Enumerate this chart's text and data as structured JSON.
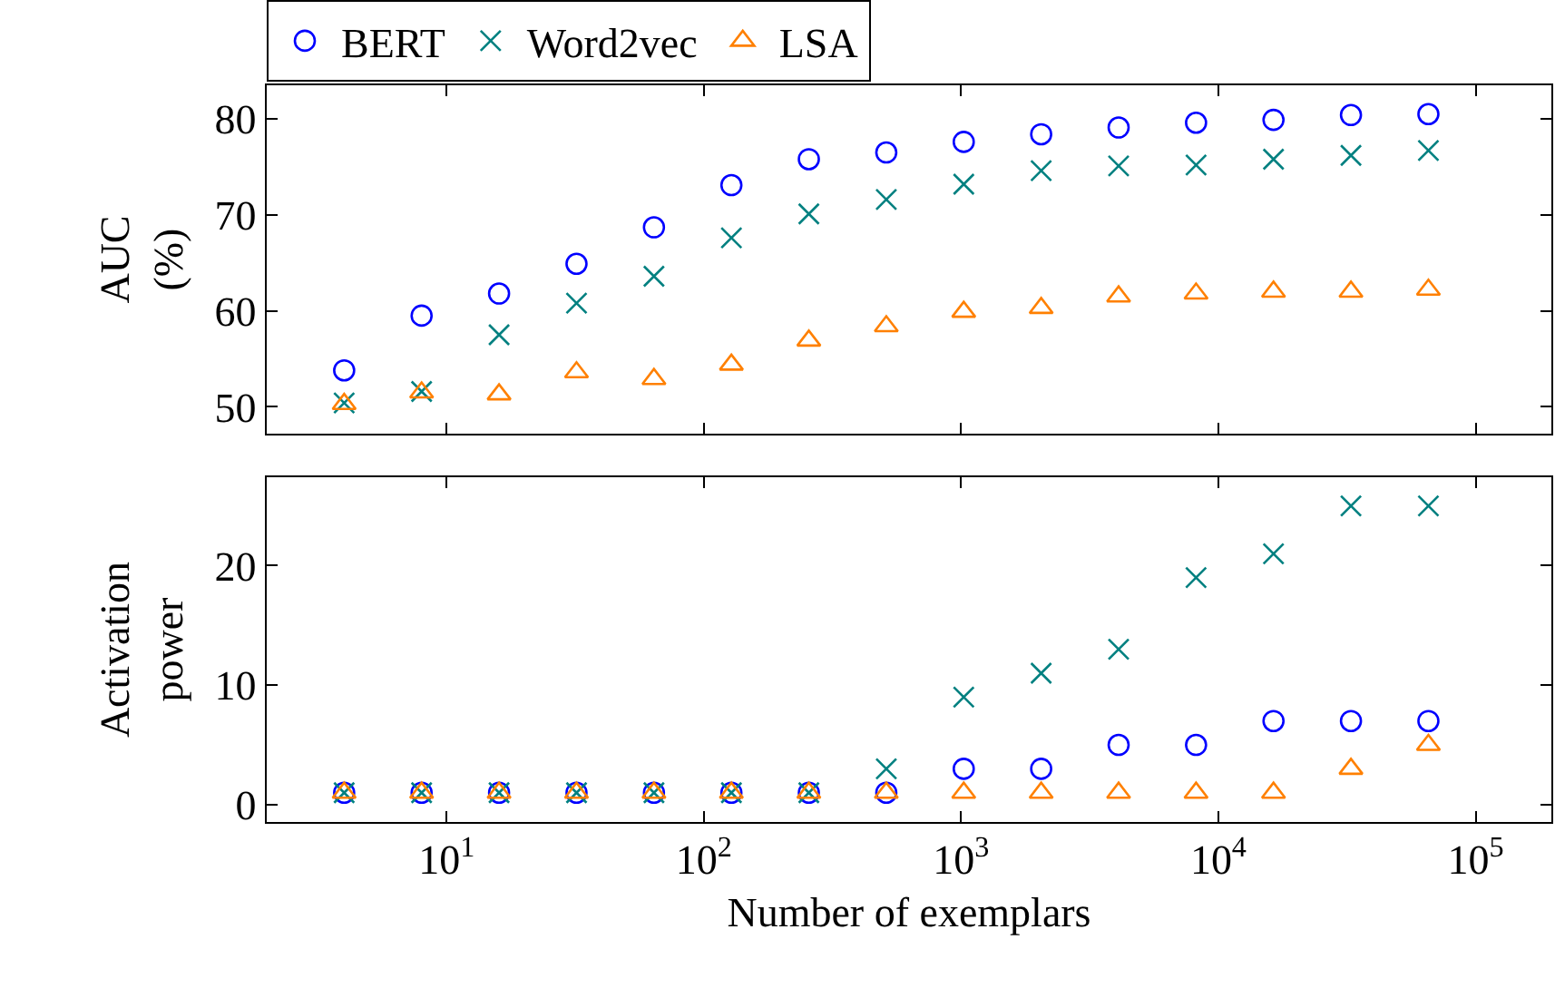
{
  "chart_data": [
    {
      "type": "scatter",
      "ylabel": "AUC\n(%)",
      "log": "x",
      "legend": "top left",
      "tick_labels": "y",
      "x": [
        4,
        8,
        16,
        32,
        64,
        128,
        256,
        512,
        1024,
        2048,
        4096,
        8192,
        16384,
        32768,
        65536
      ],
      "xlim": [
        2,
        197000
      ],
      "xticks": [
        {
          "value": 10,
          "label": null
        },
        {
          "value": 100,
          "label": null
        },
        {
          "value": 1000,
          "label": null
        },
        {
          "value": 10000,
          "label": null
        },
        {
          "value": 100000,
          "label": null
        }
      ],
      "ylim": [
        47.2,
        83.5
      ],
      "yticks": [
        50,
        60,
        70,
        80
      ],
      "series": [
        {
          "name": "BERT",
          "color": "#0000ff",
          "marker": "circle",
          "values": [
            53.8,
            59.5,
            61.8,
            64.9,
            68.7,
            73.1,
            75.8,
            76.5,
            77.6,
            78.4,
            79.1,
            79.6,
            79.9,
            80.4,
            80.5
          ]
        },
        {
          "name": "Word2vec",
          "color": "#008080",
          "marker": "cross",
          "values": [
            50.4,
            51.6,
            57.5,
            60.8,
            63.6,
            67.6,
            70.1,
            71.6,
            73.2,
            74.6,
            75.1,
            75.2,
            75.8,
            76.2,
            76.7
          ]
        },
        {
          "name": "LSA",
          "color": "#ff8000",
          "marker": "triangle",
          "values": [
            50.3,
            51.5,
            51.3,
            53.6,
            52.9,
            54.4,
            56.9,
            58.4,
            59.9,
            60.3,
            61.5,
            61.8,
            62.0,
            62.0,
            62.2
          ]
        }
      ]
    },
    {
      "type": "scatter",
      "ylabel": "Activation\npower",
      "xlabel": "Number of exemplars",
      "log": "x",
      "legend": false,
      "x": [
        4,
        8,
        16,
        32,
        64,
        128,
        256,
        512,
        1024,
        2048,
        4096,
        8192,
        16384,
        32768,
        65536
      ],
      "xlim": [
        2,
        197000
      ],
      "xticks": [
        {
          "value": 10,
          "label": "10$^{1}$"
        },
        {
          "value": 100,
          "label": "10$^{2}$"
        },
        {
          "value": 1000,
          "label": "10$^{3}$"
        },
        {
          "value": 10000,
          "label": "10$^{4}$"
        },
        {
          "value": 100000,
          "label": "10$^{5}$"
        }
      ],
      "ylim": [
        -1.45,
        27.4
      ],
      "yticks": [
        0,
        10,
        20
      ],
      "series": [
        {
          "color": "#0000ff",
          "marker": "circle",
          "values": [
            1,
            1,
            1,
            1,
            1,
            1,
            1,
            1,
            3,
            3,
            5,
            5,
            7,
            7,
            7
          ]
        },
        {
          "color": "#008080",
          "marker": "cross",
          "values": [
            1,
            1,
            1,
            1,
            1,
            1,
            1,
            3,
            9,
            11,
            13,
            19,
            21,
            25,
            25
          ]
        },
        {
          "color": "#ff8000",
          "marker": "triangle",
          "values": [
            1,
            1,
            1,
            1,
            1,
            1,
            1,
            1,
            1,
            1,
            1,
            1,
            1,
            3,
            5
          ]
        }
      ]
    }
  ]
}
